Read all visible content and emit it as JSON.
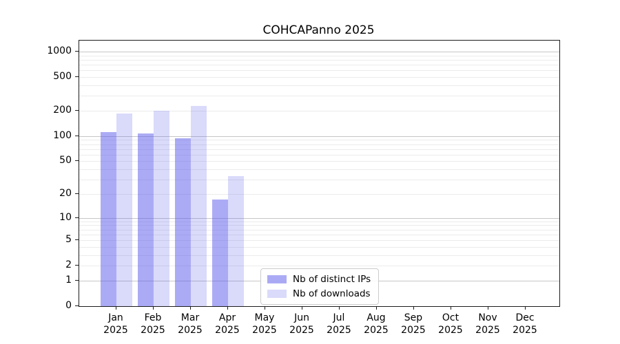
{
  "figure": {
    "background": "#ffffff"
  },
  "chart_data": {
    "type": "bar",
    "title": "COHCAPanno 2025",
    "categories": [
      "Jan 2025",
      "Feb 2025",
      "Mar 2025",
      "Apr 2025",
      "May 2025",
      "Jun 2025",
      "Jul 2025",
      "Aug 2025",
      "Sep 2025",
      "Oct 2025",
      "Nov 2025",
      "Dec 2025"
    ],
    "series": [
      {
        "name": "Nb of distinct IPs",
        "values": [
          112,
          107,
          94,
          17,
          0,
          0,
          0,
          0,
          0,
          0,
          0,
          0
        ],
        "fill": "rgba(88,88,235,0.50)"
      },
      {
        "name": "Nb of downloads",
        "values": [
          185,
          200,
          228,
          33,
          0,
          0,
          0,
          0,
          0,
          0,
          0,
          0
        ],
        "fill": "rgba(88,88,235,0.22)"
      }
    ],
    "yscale": "log1p",
    "y_ticks": [
      0,
      1,
      2,
      5,
      10,
      20,
      50,
      100,
      200,
      500,
      1000
    ],
    "ylim": [
      0,
      1350
    ],
    "grid": true,
    "legend_position": "lower center-right inside plot"
  },
  "colors": {
    "major_grid": "#c6c6c6",
    "minor_grid": "#ebebeb",
    "axis_frame": "#1a1a1a",
    "text": "#000000",
    "bar_base": "#5858eb"
  }
}
